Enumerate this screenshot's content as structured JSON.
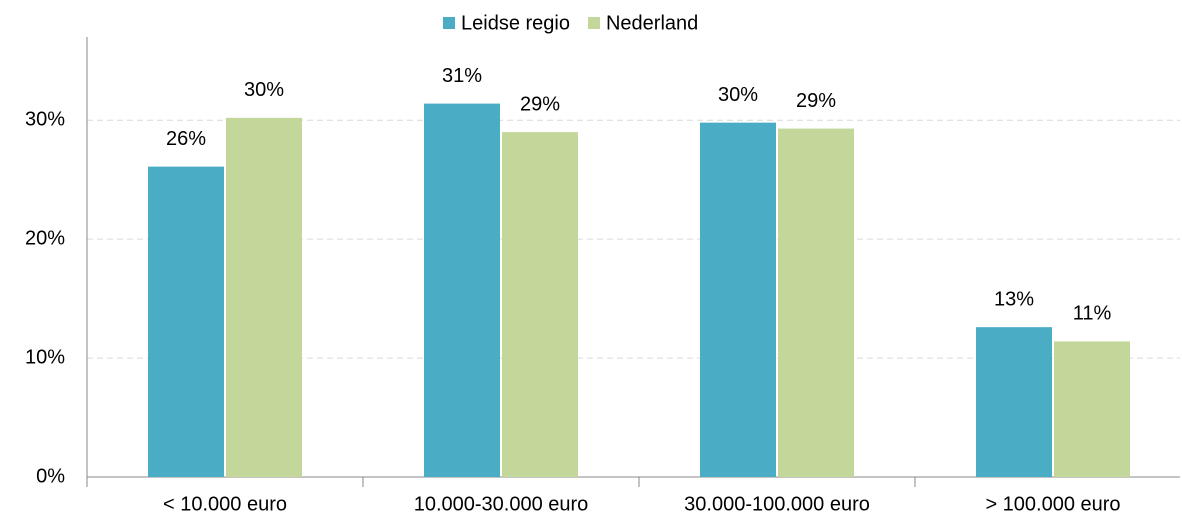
{
  "chart_data": {
    "type": "bar",
    "categories": [
      "< 10.000 euro",
      "10.000-30.000 euro",
      "30.000-100.000 euro",
      "> 100.000 euro"
    ],
    "series": [
      {
        "name": "Leidse regio",
        "color": "#4bacc6",
        "values": [
          26.1,
          31.4,
          29.8,
          12.6
        ],
        "value_labels": [
          "26%",
          "31%",
          "30%",
          "13%"
        ]
      },
      {
        "name": "Nederland",
        "color": "#c4d79b",
        "values": [
          30.2,
          29.0,
          29.3,
          11.4
        ],
        "value_labels": [
          "30%",
          "29%",
          "29%",
          "11%"
        ]
      }
    ],
    "ylim": [
      0,
      37
    ],
    "yticks": [
      {
        "value": 0,
        "label": "0%"
      },
      {
        "value": 10,
        "label": "10%"
      },
      {
        "value": 20,
        "label": "20%"
      },
      {
        "value": 30,
        "label": "30%"
      }
    ],
    "grid": true,
    "legend": "top"
  }
}
